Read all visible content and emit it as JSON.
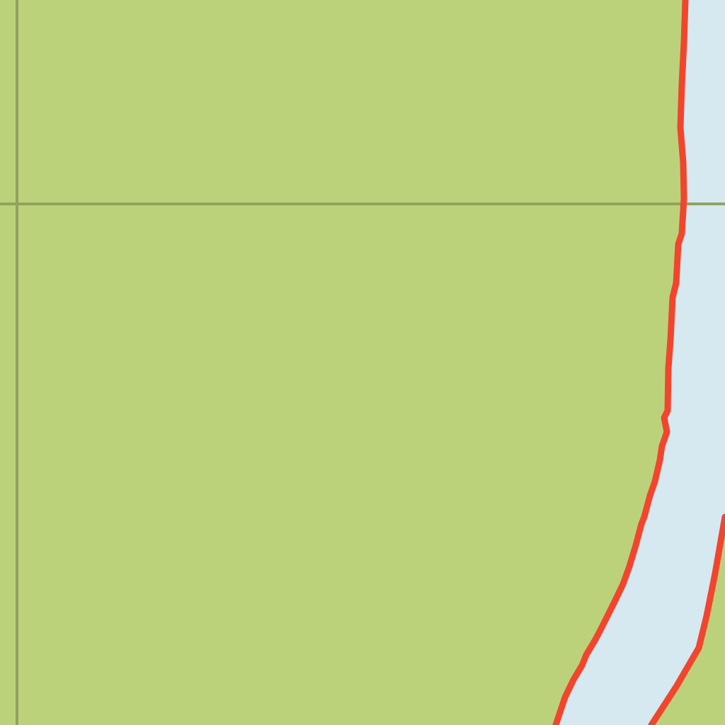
{
  "map": {
    "colors": {
      "land": "#bcd27a",
      "water": "#d6e8f0",
      "shoreline": "#f2452e",
      "grid": "#8fa05c"
    },
    "features": [
      {
        "name": "land",
        "kind": "vegetation-area"
      },
      {
        "name": "river",
        "kind": "water-body"
      },
      {
        "name": "grid-lines",
        "kind": "map-grid"
      }
    ]
  }
}
